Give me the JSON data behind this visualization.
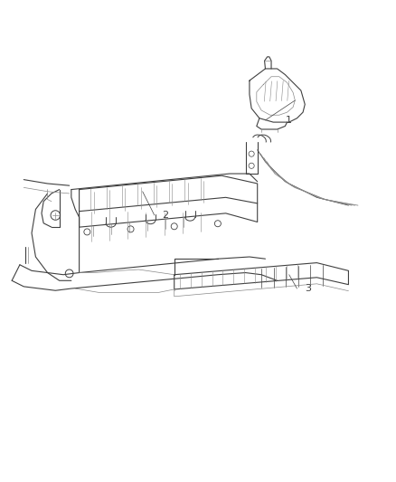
{
  "bg_color": "#ffffff",
  "line_color": "#404040",
  "line_color_light": "#888888",
  "figure_width": 4.38,
  "figure_height": 5.33,
  "dpi": 100,
  "title": "",
  "callouts": {
    "1": [
      0.72,
      0.805
    ],
    "2": [
      0.41,
      0.565
    ],
    "3": [
      0.77,
      0.38
    ]
  }
}
